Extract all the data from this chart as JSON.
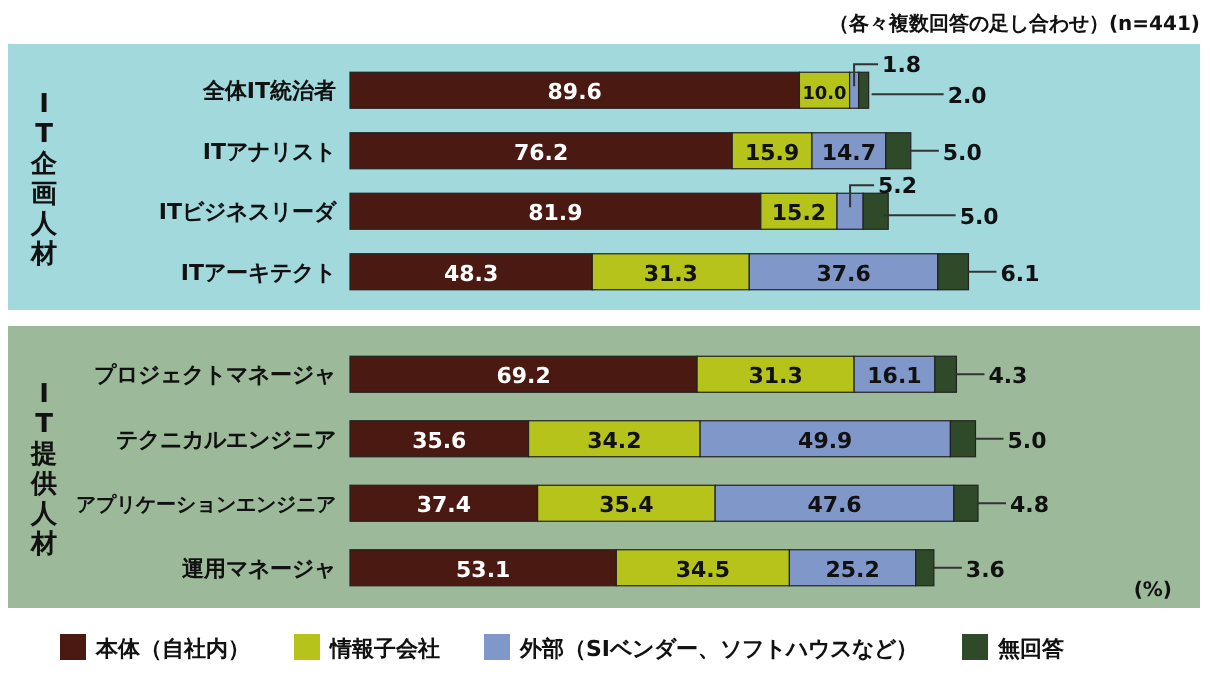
{
  "chart_data": [
    {
      "type": "bar",
      "orientation": "horizontal",
      "stacked": true,
      "legend": false,
      "ylabel": "IT企画人材",
      "annotations": [
        "（各々複数回答の足し合わせ）(n=441)"
      ],
      "categories": [
        "全体IT統治者",
        "ITアナリスト",
        "ITビジネスリーダ",
        "ITアーキテクト"
      ],
      "series": [
        {
          "color": "#4a1a12",
          "values": [
            89.6,
            76.2,
            81.9,
            48.3
          ],
          "value_labels": [
            "89.6",
            "76.2",
            "81.9",
            "48.3"
          ]
        },
        {
          "color": "#b5c31a",
          "values": [
            10.0,
            15.9,
            15.2,
            31.3
          ],
          "value_labels": [
            "10.0",
            "15.9",
            "15.2",
            "31.3"
          ]
        },
        {
          "color": "#8097c9",
          "values": [
            1.8,
            14.7,
            5.2,
            37.6
          ],
          "value_labels": [
            "1.8",
            "14.7",
            "5.2",
            "37.6"
          ]
        },
        {
          "color": "#2f4a28",
          "values": [
            2.0,
            5.0,
            5.0,
            6.1
          ],
          "value_labels": [
            "2.0",
            "5.0",
            "5.0",
            "6.1"
          ]
        }
      ]
    },
    {
      "type": "bar",
      "orientation": "horizontal",
      "stacked": true,
      "legend": "bottom",
      "ylabel": "IT提供人材",
      "annotations": [
        "(%)"
      ],
      "categories": [
        "プロジェクトマネージャ",
        "テクニカルエンジニア",
        "アプリケーションエンジニア",
        "運用マネージャ"
      ],
      "series": [
        {
          "name": "本体（自社内）",
          "color": "#4a1a12",
          "values": [
            69.2,
            35.6,
            37.4,
            53.1
          ],
          "value_labels": [
            "69.2",
            "35.6",
            "37.4",
            "53.1"
          ]
        },
        {
          "name": "情報子会社",
          "color": "#b5c31a",
          "values": [
            31.3,
            34.2,
            35.4,
            34.5
          ],
          "value_labels": [
            "31.3",
            "34.2",
            "35.4",
            "34.5"
          ]
        },
        {
          "name": "外部（SIベンダー、ソフトハウスなど）",
          "color": "#8097c9",
          "values": [
            16.1,
            49.9,
            47.6,
            25.2
          ],
          "value_labels": [
            "16.1",
            "49.9",
            "47.6",
            "25.2"
          ]
        },
        {
          "name": "無回答",
          "color": "#2f4a28",
          "values": [
            4.3,
            5.0,
            4.8,
            3.6
          ],
          "value_labels": [
            "4.3",
            "5.0",
            "4.8",
            "3.6"
          ]
        }
      ]
    }
  ]
}
